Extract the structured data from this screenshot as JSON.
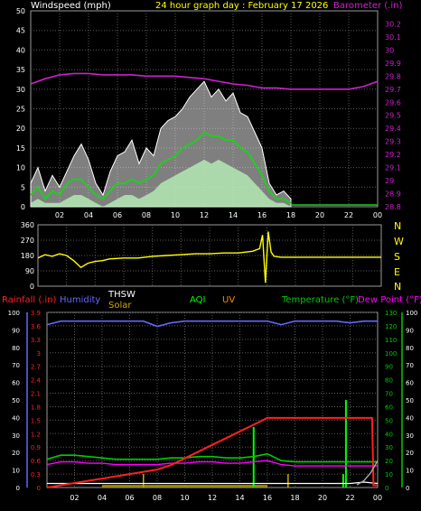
{
  "colors": {
    "background": "#000000",
    "frame": "#9a9a9a",
    "grid": "#5a5a5a",
    "axis_text": "#ffffff",
    "windspeed": "#ffffff",
    "wind_gust": "#ffffff",
    "wind_avg": "#22cc22",
    "wind_light": "#b8f0b8",
    "barometer": "#cc22cc",
    "wind_dir": "#ffff00",
    "rainfall": "#ff2020",
    "humidity": "#6666ff",
    "thsw": "#ffffff",
    "solar": "#ccaa00",
    "aqi": "#00ff00",
    "uv": "#ff8800",
    "temperature": "#00cc00",
    "dew_point": "#ff00ff",
    "gray_curve": "#aaaaaa"
  },
  "header": {
    "windspeed_label": "Windspeed (mph)",
    "title": "24 hour graph day : February 17 2026",
    "barometer_label": "Barometer (.in)"
  },
  "dir_labels": [
    "N",
    "W",
    "S",
    "E",
    "N"
  ],
  "legend": {
    "rainfall": "Rainfall (.in)",
    "humidity": "Humidity",
    "thsw": "THSW",
    "solar": "Solar",
    "aqi": "AQI",
    "uv": "UV",
    "temperature": "Temperature (°F)",
    "dew_point": "Dew Point (°F)"
  },
  "chart_data": [
    {
      "type": "line",
      "name": "wind-barometer",
      "x_ticks": [
        "02",
        "04",
        "06",
        "08",
        "10",
        "12",
        "14",
        "16",
        "18",
        "20",
        "22",
        "00"
      ],
      "xlim": [
        0,
        24
      ],
      "ylabel": "Windspeed (mph)",
      "ylim": [
        0,
        50
      ],
      "y_ticks": [
        "0",
        "5",
        "10",
        "15",
        "20",
        "25",
        "30",
        "35",
        "40",
        "45",
        "50"
      ],
      "y2label": "Barometer (.in)",
      "y2lim": [
        28.8,
        30.3
      ],
      "y2_ticks": [
        "28.8",
        "28.9",
        "29",
        "29.1",
        "29.2",
        "29.3",
        "29.4",
        "29.5",
        "29.6",
        "29.7",
        "29.8",
        "29.9",
        "30",
        "30.1",
        "30.2"
      ],
      "grid": true,
      "series": [
        {
          "key": "gust",
          "x": [
            0,
            0.5,
            1,
            1.5,
            2,
            2.5,
            3,
            3.5,
            4,
            4.5,
            5,
            5.5,
            6,
            6.5,
            7,
            7.5,
            8,
            8.5,
            9,
            9.5,
            10,
            10.5,
            11,
            11.5,
            12,
            12.5,
            13,
            13.5,
            14,
            14.5,
            15,
            15.5,
            16,
            16.5,
            17,
            17.5,
            18
          ],
          "values": [
            6,
            10,
            4,
            8,
            5,
            9,
            13,
            16,
            12,
            6,
            3,
            9,
            13,
            14,
            17,
            11,
            15,
            13,
            20,
            22,
            23,
            25,
            28,
            30,
            32,
            28,
            30,
            27,
            29,
            24,
            23,
            19,
            15,
            6,
            3,
            4,
            2
          ]
        },
        {
          "key": "avg",
          "x": [
            0,
            0.5,
            1,
            1.5,
            2,
            2.5,
            3,
            3.5,
            4,
            4.5,
            5,
            5.5,
            6,
            6.5,
            7,
            7.5,
            8,
            8.5,
            9,
            9.5,
            10,
            10.5,
            11,
            11.5,
            12,
            12.5,
            13,
            13.5,
            14,
            14.5,
            15,
            15.5,
            16,
            16.5,
            17,
            17.5,
            18
          ],
          "values": [
            3,
            5,
            2,
            4,
            3,
            6,
            7,
            7,
            5,
            3,
            2,
            4,
            6,
            6,
            7,
            6,
            7,
            8,
            11,
            12,
            13,
            15,
            16,
            17,
            19,
            18,
            18,
            17,
            17,
            15,
            14,
            11,
            8,
            4,
            2,
            2,
            1
          ]
        },
        {
          "key": "low",
          "x": [
            0,
            0.5,
            1,
            1.5,
            2,
            2.5,
            3,
            3.5,
            4,
            4.5,
            5,
            5.5,
            6,
            6.5,
            7,
            7.5,
            8,
            8.5,
            9,
            9.5,
            10,
            10.5,
            11,
            11.5,
            12,
            12.5,
            13,
            13.5,
            14,
            14.5,
            15,
            15.5,
            16,
            16.5,
            17,
            17.5,
            18
          ],
          "values": [
            1,
            2,
            1,
            1,
            1,
            2,
            3,
            3,
            2,
            1,
            0,
            1,
            2,
            3,
            3,
            2,
            3,
            4,
            6,
            7,
            8,
            9,
            10,
            11,
            12,
            11,
            12,
            11,
            10,
            9,
            8,
            6,
            4,
            2,
            1,
            1,
            0
          ]
        },
        {
          "key": "barometer",
          "axis": "right",
          "x": [
            0,
            1,
            2,
            3,
            4,
            5,
            6,
            7,
            8,
            9,
            10,
            11,
            12,
            13,
            14,
            15,
            16,
            17,
            18,
            19,
            20,
            21,
            22,
            23,
            24
          ],
          "values": [
            29.74,
            29.78,
            29.81,
            29.82,
            29.82,
            29.81,
            29.81,
            29.81,
            29.8,
            29.8,
            29.8,
            29.79,
            29.78,
            29.76,
            29.74,
            29.73,
            29.71,
            29.71,
            29.7,
            29.7,
            29.7,
            29.7,
            29.7,
            29.72,
            29.76
          ]
        }
      ]
    },
    {
      "type": "line",
      "name": "wind-direction",
      "xlim": [
        0,
        24
      ],
      "ylim": [
        0,
        360
      ],
      "y_ticks": [
        "0",
        "90",
        "180",
        "270",
        "360"
      ],
      "series": [
        {
          "key": "direction",
          "x": [
            0,
            0.5,
            1,
            1.5,
            2,
            2.5,
            3,
            3.5,
            4,
            4.5,
            5,
            6,
            7,
            8,
            9,
            10,
            11,
            12,
            13,
            14,
            15,
            15.5,
            15.7,
            15.9,
            16.1,
            16.3,
            16.5,
            17,
            18,
            19,
            20,
            21,
            22,
            23,
            24
          ],
          "values": [
            165,
            185,
            175,
            190,
            180,
            150,
            110,
            135,
            145,
            150,
            160,
            165,
            165,
            175,
            180,
            185,
            190,
            190,
            195,
            195,
            205,
            220,
            300,
            20,
            320,
            200,
            175,
            170,
            170,
            170,
            170,
            170,
            170,
            170,
            170
          ]
        }
      ]
    },
    {
      "type": "line",
      "name": "rain-humidity-temperature",
      "x_ticks": [
        "02",
        "04",
        "06",
        "08",
        "10",
        "12",
        "14",
        "16",
        "18",
        "20",
        "22",
        "00"
      ],
      "xlim": [
        0,
        24
      ],
      "y_left_ticks": [
        "0",
        "0.3",
        "0.6",
        "0.9",
        "1.2",
        "1.5",
        "1.8",
        "2.1",
        "2.4",
        "2.7",
        "3",
        "3.3",
        "3.6",
        "3.9"
      ],
      "y_left_lim": [
        0,
        3.9
      ],
      "y_left2_ticks": [
        "0",
        "5",
        "10",
        "15",
        "20",
        "25",
        "30",
        "35",
        "40",
        "45",
        "50",
        "55",
        "60",
        "65",
        "70",
        "75",
        "80",
        "85",
        "90",
        "95",
        "100"
      ],
      "y_left2_lim": [
        0,
        100
      ],
      "y_right_ticks": [
        "0",
        "10",
        "20",
        "30",
        "40",
        "50",
        "60",
        "70",
        "80",
        "90",
        "100",
        "110",
        "120",
        "130"
      ],
      "y_right_lim": [
        0,
        130
      ],
      "y_right2_ticks": [
        "0",
        "5",
        "10",
        "15",
        "20",
        "25",
        "30",
        "35",
        "40",
        "45",
        "50",
        "55",
        "60",
        "65",
        "70",
        "75",
        "80",
        "85",
        "90",
        "95",
        "100"
      ],
      "y_right2_lim": [
        0,
        100
      ],
      "grid": true,
      "series": [
        {
          "key": "rainfall",
          "axis": "rain",
          "x": [
            0,
            1,
            2,
            3,
            4,
            5,
            6,
            7,
            8,
            9,
            10,
            11,
            12,
            13,
            14,
            15,
            16,
            17,
            18,
            19,
            20,
            21,
            22,
            23,
            23.6,
            23.7,
            24
          ],
          "values": [
            0.0,
            0.05,
            0.1,
            0.15,
            0.2,
            0.25,
            0.3,
            0.35,
            0.4,
            0.5,
            0.65,
            0.8,
            0.95,
            1.1,
            1.25,
            1.4,
            1.55,
            1.55,
            1.55,
            1.55,
            1.55,
            1.55,
            1.55,
            1.55,
            1.55,
            0.05,
            0.05
          ]
        },
        {
          "key": "humidity",
          "axis": "humidity",
          "x": [
            0,
            1,
            2,
            3,
            4,
            5,
            6,
            7,
            8,
            9,
            10,
            11,
            12,
            13,
            14,
            15,
            16,
            17,
            18,
            19,
            20,
            21,
            22,
            23,
            24
          ],
          "values": [
            93,
            95,
            95,
            95,
            95,
            95,
            95,
            95,
            92,
            94,
            95,
            95,
            95,
            95,
            95,
            95,
            95,
            93,
            95,
            95,
            95,
            95,
            94,
            95,
            95
          ]
        },
        {
          "key": "temperature",
          "axis": "temp",
          "x": [
            0,
            1,
            2,
            3,
            4,
            5,
            6,
            7,
            8,
            9,
            10,
            11,
            12,
            13,
            14,
            15,
            16,
            17,
            18,
            19,
            20,
            21,
            22,
            23,
            24
          ],
          "values": [
            21,
            24,
            24,
            23,
            22,
            21,
            21,
            21,
            21,
            22,
            22,
            23,
            23,
            22,
            22,
            23,
            25,
            20,
            19,
            19,
            19,
            19,
            19,
            19,
            19
          ]
        },
        {
          "key": "dew_point",
          "axis": "temp",
          "x": [
            0,
            1,
            2,
            3,
            4,
            5,
            6,
            7,
            8,
            9,
            10,
            11,
            12,
            13,
            14,
            15,
            16,
            17,
            18,
            19,
            20,
            21,
            22,
            23,
            24
          ],
          "values": [
            17,
            19,
            19,
            18,
            18,
            17,
            17,
            17,
            17,
            18,
            18,
            19,
            19,
            18,
            18,
            19,
            20,
            17,
            16,
            16,
            16,
            16,
            16,
            16,
            16
          ]
        },
        {
          "key": "thsw",
          "axis": "temp",
          "x": [
            0,
            2,
            4,
            6,
            8,
            10,
            12,
            14,
            16,
            18,
            20,
            22,
            23,
            24
          ],
          "values": [
            3,
            3,
            3,
            3,
            3,
            3,
            3,
            3,
            3,
            3,
            3,
            3,
            4,
            3
          ]
        },
        {
          "key": "gray_curve",
          "axis": "temp",
          "x": [
            22.5,
            23,
            23.5,
            24
          ],
          "values": [
            2,
            5,
            11,
            20
          ]
        }
      ],
      "spikes": [
        {
          "key": "aqi",
          "x": 15.0,
          "value": 45
        },
        {
          "key": "aqi",
          "x": 21.7,
          "value": 65
        },
        {
          "key": "aqi",
          "x": 21.5,
          "value": 10
        },
        {
          "key": "solar",
          "x": 7.0,
          "value": 10
        },
        {
          "key": "solar",
          "x": 17.5,
          "value": 10
        }
      ]
    }
  ]
}
